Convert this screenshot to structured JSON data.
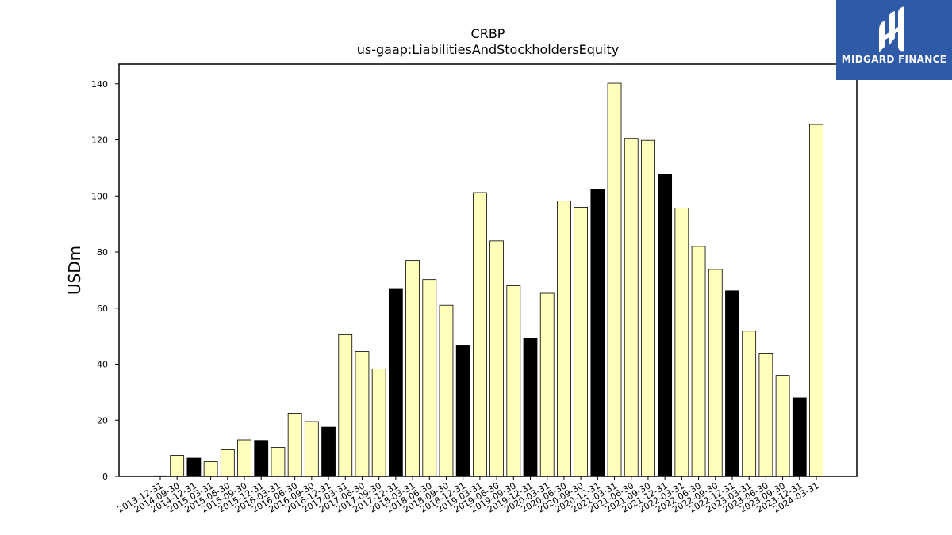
{
  "chart_data": {
    "type": "bar",
    "title": "CRBP",
    "subtitle": "us-gaap:LiabilitiesAndStockholdersEquity",
    "xlabel": "",
    "ylabel": "USDm",
    "ylim": [
      0,
      147
    ],
    "yticks": [
      0,
      20,
      40,
      60,
      80,
      100,
      120,
      140
    ],
    "grid": false,
    "categories": [
      "2013-12-31",
      "2014-09-30",
      "2014-12-31",
      "2015-03-31",
      "2015-06-30",
      "2015-09-30",
      "2015-12-31",
      "2016-03-31",
      "2016-06-30",
      "2016-09-30",
      "2016-12-31",
      "2017-03-31",
      "2017-06-30",
      "2017-09-30",
      "2017-12-31",
      "2018-03-31",
      "2018-06-30",
      "2018-09-30",
      "2018-12-31",
      "2019-03-31",
      "2019-06-30",
      "2019-09-30",
      "2019-12-31",
      "2020-03-31",
      "2020-06-30",
      "2020-09-30",
      "2020-12-31",
      "2021-03-31",
      "2021-06-30",
      "2021-09-30",
      "2021-12-31",
      "2022-03-31",
      "2022-06-30",
      "2022-09-30",
      "2022-12-31",
      "2023-03-31",
      "2023-06-30",
      "2023-09-30",
      "2023-12-31",
      "2024-03-31"
    ],
    "values": [
      0.2,
      7.5,
      6.5,
      5.2,
      9.5,
      13.0,
      12.8,
      10.3,
      22.5,
      19.5,
      17.5,
      50.5,
      44.5,
      38.3,
      67.0,
      77.0,
      70.2,
      61.0,
      46.8,
      101.2,
      84.0,
      68.0,
      49.2,
      65.3,
      98.2,
      96.0,
      102.3,
      140.2,
      120.5,
      119.8,
      107.8,
      95.7,
      82.0,
      73.8,
      66.2,
      51.8,
      43.7,
      36.0,
      28.0,
      125.5
    ],
    "highlight": [
      false,
      false,
      true,
      false,
      false,
      false,
      true,
      false,
      false,
      false,
      true,
      false,
      false,
      false,
      true,
      false,
      false,
      false,
      true,
      false,
      false,
      false,
      true,
      false,
      false,
      false,
      true,
      false,
      false,
      false,
      true,
      false,
      false,
      false,
      true,
      false,
      false,
      false,
      true,
      false
    ],
    "colors": {
      "bar": "#ffffbb",
      "highlight_bar": "#000000",
      "edge": "#000000"
    }
  },
  "logo": {
    "text": "MIDGARD FINANCE",
    "background": "#2f5aa8",
    "icon": "midgard-logo-icon"
  }
}
